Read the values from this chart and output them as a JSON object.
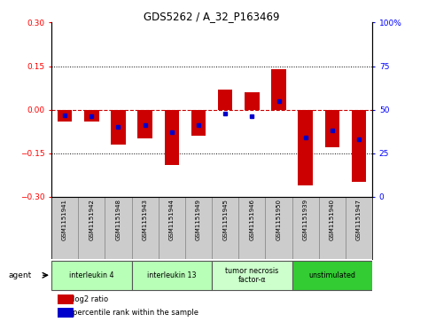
{
  "title": "GDS5262 / A_32_P163469",
  "samples": [
    "GSM1151941",
    "GSM1151942",
    "GSM1151948",
    "GSM1151943",
    "GSM1151944",
    "GSM1151949",
    "GSM1151945",
    "GSM1151946",
    "GSM1151950",
    "GSM1151939",
    "GSM1151940",
    "GSM1151947"
  ],
  "log2_ratio": [
    -0.04,
    -0.04,
    -0.12,
    -0.1,
    -0.19,
    -0.09,
    0.07,
    0.06,
    0.14,
    -0.26,
    -0.13,
    -0.25
  ],
  "percentile_rank": [
    47,
    46,
    40,
    41,
    37,
    41,
    48,
    46,
    55,
    34,
    38,
    33
  ],
  "agents": [
    {
      "label": "interleukin 4",
      "start": 0,
      "end": 2,
      "color": "#b8ffb8"
    },
    {
      "label": "interleukin 13",
      "start": 3,
      "end": 5,
      "color": "#b8ffb8"
    },
    {
      "label": "tumor necrosis\nfactor-α",
      "start": 6,
      "end": 8,
      "color": "#ccffcc"
    },
    {
      "label": "unstimulated",
      "start": 9,
      "end": 11,
      "color": "#33cc33"
    }
  ],
  "ylim_left": [
    -0.3,
    0.3
  ],
  "ylim_right": [
    0,
    100
  ],
  "yticks_left": [
    -0.3,
    -0.15,
    0,
    0.15,
    0.3
  ],
  "yticks_right": [
    0,
    25,
    50,
    75,
    100
  ],
  "bar_color": "#cc0000",
  "dot_color": "#0000cc",
  "bg_color": "#ffffff",
  "dotted_lines": [
    -0.15,
    0.15
  ],
  "zero_line_color": "#cc0000",
  "label_bg": "#cccccc"
}
